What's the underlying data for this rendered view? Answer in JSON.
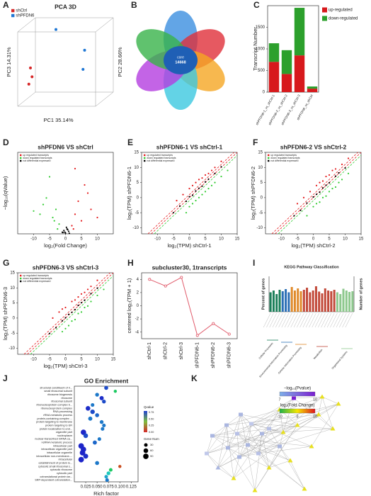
{
  "chart_data": [
    {
      "type": "scatter3d",
      "panel_label": "A",
      "title": "PCA 3D",
      "x_label": "PC1 35.14%",
      "y_label": "PC3 14.31%",
      "z_label": "PC2 28.66%",
      "xlim": [
        -150,
        150
      ],
      "ylim": [
        -150,
        150
      ],
      "series": [
        {
          "name": "shCtrl",
          "color": "#d62728",
          "x": [
            -110,
            -105,
            -115
          ],
          "values": [
            -20,
            -50,
            -75
          ]
        },
        {
          "name": "shPFDN6",
          "color": "#1f77d4",
          "x": [
            -30,
            60,
            55
          ],
          "values": [
            110,
            40,
            -25
          ]
        }
      ]
    },
    {
      "type": "venn",
      "panel_label": "B",
      "core_label": "core",
      "core_value": 14668
    },
    {
      "type": "stacked_bar",
      "panel_label": "C",
      "y_label": "Transcript Number",
      "categories": [
        "shPFDN6-1_vs_shCtrl-1",
        "shPFDN6-2_vs_shCtrl-2",
        "shPFDN6-3_vs_shCtrl-3",
        "shPFDN6_vs_shCtrl"
      ],
      "ylim": [
        0,
        2000
      ],
      "yticks": [
        0,
        500,
        1000,
        1500
      ],
      "series": [
        {
          "name": "up-regulated",
          "color": "#d7191c",
          "values": [
            700,
            420,
            850,
            80
          ]
        },
        {
          "name": "down-regulated",
          "color": "#2ca02c",
          "values": [
            430,
            550,
            1100,
            50
          ]
        }
      ]
    },
    {
      "type": "scatter",
      "panel_label": "D",
      "title": "shPFDN6 VS shCtrl",
      "x_label": "log₂(Fold Change)",
      "y_label": "−log₁₀(qValue)",
      "xlim": [
        -15,
        15
      ],
      "xticks": [
        -10,
        -5,
        0,
        5,
        10
      ],
      "ylim": [
        0,
        50
      ],
      "series": [
        {
          "name": "up regulated transcripts",
          "color": "#e41a1c",
          "x": [
            2,
            3,
            4,
            5,
            6,
            8,
            10,
            3,
            2.5,
            7
          ],
          "values": [
            5,
            12,
            20,
            8,
            30,
            15,
            10,
            40,
            3,
            25
          ]
        },
        {
          "name": "down regulated transcripts",
          "color": "#33cc33",
          "x": [
            -2,
            -3,
            -4,
            -6,
            -8,
            -2.5,
            -5,
            -3.5,
            -10,
            -7
          ],
          "values": [
            6,
            15,
            10,
            22,
            12,
            3,
            35,
            8,
            14,
            18
          ]
        },
        {
          "name": "not differential expressed",
          "color": "#000000",
          "x": [
            -1,
            -0.5,
            0,
            0.5,
            1,
            -0.8,
            0.3,
            0.7,
            -0.2,
            1.2
          ],
          "values": [
            1,
            2,
            0.5,
            3,
            1.5,
            0.8,
            4,
            2.5,
            1,
            0.3
          ]
        }
      ]
    },
    {
      "type": "scatter",
      "panel_label": "E",
      "title": "shPFDN6-1 VS shCtrl-1",
      "x_label": "log₂(TPM) shCtrl-1",
      "y_label": "log₂(TPM) shPFDN6-1",
      "diagonal": true,
      "xlim": [
        -15,
        15
      ],
      "xticks": [
        -10,
        -5,
        0,
        5,
        10,
        15
      ],
      "ylim": [
        -12,
        15
      ],
      "yticks": [
        -10,
        -5,
        0,
        5,
        10,
        15
      ],
      "series": [
        {
          "name": "up regulated transcripts",
          "color": "#e41a1c",
          "x": [
            -4,
            -2,
            0,
            1,
            2,
            3,
            4,
            5,
            6,
            7,
            8,
            10
          ],
          "values": [
            -1,
            1,
            3,
            4,
            5,
            6,
            6.5,
            7.5,
            8,
            9,
            10,
            12
          ]
        },
        {
          "name": "down regulated transcripts",
          "color": "#33cc33",
          "x": [
            -1,
            0,
            1,
            2,
            3,
            4,
            5,
            6,
            7,
            8,
            10,
            12
          ],
          "values": [
            -5,
            -3,
            -2,
            -1,
            0,
            1,
            2,
            3,
            4,
            5,
            7,
            9
          ]
        },
        {
          "name": "not differential expressed",
          "color": "#000000",
          "x": [
            -5,
            -3,
            -1,
            0,
            1,
            2,
            3,
            4,
            5,
            6,
            8,
            10
          ],
          "values": [
            -5,
            -2.8,
            -1.2,
            0.3,
            0.8,
            2.2,
            3.1,
            3.8,
            5.2,
            6.1,
            8,
            10.2
          ]
        }
      ]
    },
    {
      "type": "scatter",
      "panel_label": "F",
      "title": "shPFDN6-2 VS shCtrl-2",
      "x_label": "log₂(TPM) shCtrl-2",
      "y_label": "log₂(TPM) shPFDN6-2",
      "diagonal": true,
      "xlim": [
        -15,
        15
      ],
      "xticks": [
        -10,
        -5,
        0,
        5,
        10,
        15
      ],
      "ylim": [
        -12,
        15
      ],
      "yticks": [
        -10,
        -5,
        0,
        5,
        10,
        15
      ],
      "series": [
        {
          "name": "up regulated transcripts",
          "color": "#e41a1c",
          "x": [
            -5,
            -3,
            -1,
            1,
            2,
            3,
            4,
            5,
            6,
            7,
            9,
            11
          ],
          "values": [
            -2,
            0,
            2,
            4,
            5,
            5.5,
            7,
            7.5,
            9,
            9.5,
            11,
            13
          ]
        },
        {
          "name": "down regulated transcripts",
          "color": "#33cc33",
          "x": [
            -2,
            0,
            1,
            2,
            3,
            4,
            5,
            6,
            7,
            8,
            9,
            11
          ],
          "values": [
            -6,
            -3,
            -2,
            -1.5,
            0,
            0.5,
            2,
            3,
            3.5,
            5,
            6,
            8
          ]
        },
        {
          "name": "not differential expressed",
          "color": "#000000",
          "x": [
            -6,
            -4,
            -2,
            0,
            1,
            2,
            3,
            4,
            5,
            7,
            8,
            10
          ],
          "values": [
            -6,
            -4.2,
            -1.8,
            0.2,
            1.1,
            1.8,
            3.2,
            4.1,
            4.9,
            7.1,
            8.2,
            9.8
          ]
        }
      ]
    },
    {
      "type": "scatter",
      "panel_label": "G",
      "title": "shPFDN6-3 VS shCtrl-3",
      "x_label": "log₂(TPM) shCtrl-3",
      "y_label": "log₂(TPM) shPFDN6-3",
      "diagonal": true,
      "xlim": [
        -15,
        15
      ],
      "xticks": [
        -10,
        -5,
        0,
        5,
        10,
        15
      ],
      "ylim": [
        -12,
        15
      ],
      "yticks": [
        -10,
        -5,
        0,
        5,
        10,
        15
      ],
      "series": [
        {
          "name": "up regulated transcripts",
          "color": "#e41a1c",
          "x": [
            -4,
            -2,
            -1,
            0,
            2,
            3,
            4,
            5,
            6,
            7,
            8,
            10
          ],
          "values": [
            0,
            2,
            3,
            3.5,
            5.5,
            6,
            7,
            8,
            8.5,
            9.5,
            10.5,
            12.5
          ]
        },
        {
          "name": "down regulated transcripts",
          "color": "#33cc33",
          "x": [
            -1,
            0,
            1,
            2,
            3,
            4,
            5,
            6,
            7,
            8,
            10,
            12
          ],
          "values": [
            -4.5,
            -3.5,
            -2.5,
            -1,
            -0.5,
            1.5,
            2,
            3.5,
            4,
            5.5,
            7.5,
            9.5
          ]
        },
        {
          "name": "not differential expressed",
          "color": "#000000",
          "x": [
            -5,
            -3,
            -1,
            0,
            1,
            2,
            3,
            4,
            5,
            6,
            8,
            10
          ],
          "values": [
            -5.1,
            -3.2,
            -0.9,
            0.1,
            1.2,
            1.9,
            2.8,
            4.2,
            5.1,
            5.9,
            8.1,
            9.9
          ]
        }
      ]
    },
    {
      "type": "line",
      "panel_label": "H",
      "title": "subcluster30, 1transcripts",
      "y_label": "centered log₂(TPM + 1)",
      "color": "#e05a6a",
      "categories": [
        "shCtrl-1",
        "shCtrl-2",
        "shCtrl-3",
        "shPFDN6-1",
        "shPFDN6-2",
        "shPFDN6-3"
      ],
      "values": [
        4,
        3,
        4.3,
        -4.5,
        -2.7,
        -4.3
      ],
      "ylim": [
        -5,
        5
      ],
      "yticks": [
        -4,
        -2,
        0,
        2,
        4
      ]
    },
    {
      "type": "bar",
      "panel_label": "I",
      "title": "KEGG Pathway Classification",
      "y_label": "Percent of genes",
      "y2_label": "Number of genes",
      "ylim": [
        0,
        100
      ],
      "values": [
        55,
        60,
        50,
        62,
        58,
        64,
        55,
        70,
        60,
        66,
        58,
        62,
        68,
        55,
        60,
        72,
        57,
        52,
        66,
        60,
        58,
        62,
        55,
        50,
        65,
        60,
        56,
        58
      ],
      "colors": [
        "#1b7f5a",
        "#1b7f5a",
        "#1b7f5a",
        "#1b7f5a",
        "#2b6fb5",
        "#2b6fb5",
        "#2b6fb5",
        "#e08a2b",
        "#e08a2b",
        "#e08a2b",
        "#e08a2b",
        "#c24a3a",
        "#c24a3a",
        "#c24a3a",
        "#c24a3a",
        "#c24a3a",
        "#c24a3a",
        "#c24a3a",
        "#c24a3a",
        "#c24a3a",
        "#c24a3a",
        "#c24a3a",
        "#8dc88d",
        "#8dc88d",
        "#8dc88d",
        "#8dc88d",
        "#8dc88d",
        "#8dc88d"
      ],
      "groups": [
        "Cellular Processes",
        "Environmental Information Processing",
        "Genetic Information Processing",
        "Metabolism",
        "Organismal Systems"
      ]
    },
    {
      "type": "dot",
      "panel_label": "J",
      "title": "GO Enrichment",
      "x_label": "Rich factor",
      "categories": [
        "structural constituent of ri...",
        "small ribosomal subunit",
        "ribosome biogenesis",
        "ribosome",
        "ribosomal subunit",
        "ribonucleoprotein complex b...",
        "ribonucleoprotein complex",
        "RNA processing",
        "rRNA metabolic process",
        "protein-containing complex ...",
        "protein targeting to membrane",
        "protein targeting to ER",
        "protein localization to end...",
        "organelle part",
        "nucleoplasm",
        "nuclear-transcribed mRNA ca...",
        "ncRNA metabolic process",
        "intracellular part",
        "intracellular organelle part",
        "intracellular organelle",
        "intracellular non-membrane-...",
        "intracellular",
        "establishment of protein lo...",
        "cytosolic small ribosomal s...",
        "cytosolic ribosome",
        "cytosolic part",
        "cotranslational protein tar...",
        "SRP-dependent cotranslation..."
      ],
      "x": [
        0.07,
        0.09,
        0.05,
        0.06,
        0.065,
        0.04,
        0.03,
        0.04,
        0.05,
        0.035,
        0.06,
        0.065,
        0.062,
        0.02,
        0.025,
        0.055,
        0.045,
        0.015,
        0.02,
        0.018,
        0.025,
        0.015,
        0.05,
        0.1,
        0.08,
        0.075,
        0.07,
        0.072
      ],
      "values": [
        40,
        20,
        35,
        45,
        35,
        30,
        60,
        55,
        40,
        45,
        35,
        30,
        30,
        90,
        60,
        30,
        45,
        95,
        90,
        95,
        70,
        95,
        40,
        20,
        30,
        35,
        30,
        30
      ],
      "qvalues": [
        0.05,
        0.3,
        0.1,
        0.02,
        0.05,
        0.1,
        0.02,
        0.05,
        0.08,
        0.1,
        0.1,
        0.1,
        0.1,
        0.01,
        0.05,
        0.1,
        0.08,
        0.01,
        0.01,
        0.01,
        0.02,
        0.01,
        0.1,
        0.7,
        0.3,
        0.2,
        0.15,
        0.1
      ],
      "xlim": [
        0,
        0.14
      ],
      "xticks": [
        {
          "value": 0.025,
          "label": "0.025"
        },
        {
          "value": 0.05,
          "label": "0.050"
        },
        {
          "value": 0.075,
          "label": "0.075"
        },
        {
          "value": 0.1,
          "label": "0.100"
        },
        {
          "value": 0.125,
          "label": "0.125"
        }
      ],
      "color_label": "Qvalue",
      "color_ticks": [
        {
          "value": 0,
          "label": "0.00"
        },
        {
          "value": 0.25,
          "label": "0.25"
        },
        {
          "value": 0.5,
          "label": "0.50"
        },
        {
          "value": 0.75,
          "label": "0.75"
        }
      ],
      "size_label": "Gene Num",
      "size_ticks": [
        30,
        60,
        90
      ]
    },
    {
      "type": "network",
      "panel_label": "K",
      "pvalue_label": "−log₁₀(Pvalue)",
      "pvalue_ticks": [
        7,
        10
      ],
      "fc_label": "log₂(Fold Change)",
      "fc_ticks": [
        -10,
        0,
        10
      ]
    }
  ]
}
